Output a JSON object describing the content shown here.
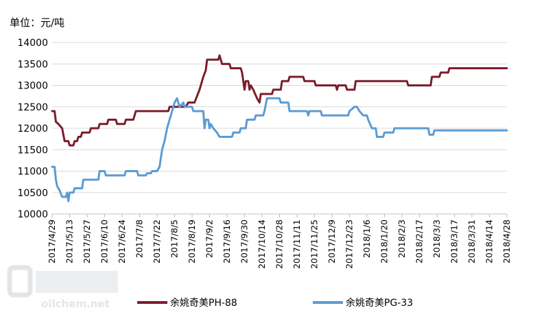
{
  "chart_data": {
    "type": "line",
    "unit_label": "单位：元/吨",
    "ylim": [
      10000,
      14000
    ],
    "yticks": [
      10000,
      10500,
      11000,
      11500,
      12000,
      12500,
      13000,
      13500,
      14000
    ],
    "xlim": [
      "2017-04-29",
      "2018-04-28"
    ],
    "xticks": [
      "2017/4/29",
      "2017/5/13",
      "2017/5/27",
      "2017/6/10",
      "2017/6/24",
      "2017/7/8",
      "2017/7/22",
      "2017/8/5",
      "2017/8/19",
      "2017/9/2",
      "2017/9/16",
      "2017/9/30",
      "2017/10/14",
      "2017/10/28",
      "2017/11/11",
      "2017/11/25",
      "2017/12/9",
      "2017/12/23",
      "2018/1/6",
      "2018/1/20",
      "2018/2/3",
      "2018/2/17",
      "2018/3/3",
      "2018/3/17",
      "2018/3/31",
      "2018/4/14",
      "2018/4/28"
    ],
    "grid": "horizontal",
    "legend_position": "bottom",
    "watermark": {
      "text": "oilchem.net",
      "colors": [
        "#dde0e4",
        "#e8eaed"
      ]
    },
    "series": [
      {
        "name": "余姚奇美PH-88",
        "color": "#7b1c2c",
        "points": [
          [
            "2017-04-29",
            12400
          ],
          [
            "2017-05-01",
            12400
          ],
          [
            "2017-05-02",
            12150
          ],
          [
            "2017-05-04",
            12100
          ],
          [
            "2017-05-07",
            12000
          ],
          [
            "2017-05-09",
            11700
          ],
          [
            "2017-05-12",
            11700
          ],
          [
            "2017-05-13",
            11600
          ],
          [
            "2017-05-16",
            11600
          ],
          [
            "2017-05-17",
            11700
          ],
          [
            "2017-05-19",
            11700
          ],
          [
            "2017-05-20",
            11800
          ],
          [
            "2017-05-22",
            11800
          ],
          [
            "2017-05-23",
            11900
          ],
          [
            "2017-05-29",
            11900
          ],
          [
            "2017-05-30",
            12000
          ],
          [
            "2017-06-05",
            12000
          ],
          [
            "2017-06-06",
            12100
          ],
          [
            "2017-06-12",
            12100
          ],
          [
            "2017-06-13",
            12200
          ],
          [
            "2017-06-19",
            12200
          ],
          [
            "2017-06-20",
            12100
          ],
          [
            "2017-06-26",
            12100
          ],
          [
            "2017-06-27",
            12200
          ],
          [
            "2017-07-03",
            12200
          ],
          [
            "2017-07-04",
            12300
          ],
          [
            "2017-07-05",
            12400
          ],
          [
            "2017-07-31",
            12400
          ],
          [
            "2017-08-01",
            12500
          ],
          [
            "2017-08-14",
            12500
          ],
          [
            "2017-08-15",
            12550
          ],
          [
            "2017-08-16",
            12600
          ],
          [
            "2017-08-21",
            12600
          ],
          [
            "2017-08-25",
            12900
          ],
          [
            "2017-08-28",
            13200
          ],
          [
            "2017-08-30",
            13350
          ],
          [
            "2017-08-31",
            13600
          ],
          [
            "2017-09-09",
            13600
          ],
          [
            "2017-09-10",
            13700
          ],
          [
            "2017-09-11",
            13600
          ],
          [
            "2017-09-12",
            13500
          ],
          [
            "2017-09-18",
            13500
          ],
          [
            "2017-09-19",
            13400
          ],
          [
            "2017-09-27",
            13400
          ],
          [
            "2017-09-28",
            13300
          ],
          [
            "2017-09-30",
            12900
          ],
          [
            "2017-10-01",
            13100
          ],
          [
            "2017-10-03",
            13100
          ],
          [
            "2017-10-04",
            12900
          ],
          [
            "2017-10-05",
            13000
          ],
          [
            "2017-10-07",
            12900
          ],
          [
            "2017-10-10",
            12700
          ],
          [
            "2017-10-12",
            12600
          ],
          [
            "2017-10-13",
            12800
          ],
          [
            "2017-10-22",
            12800
          ],
          [
            "2017-10-23",
            12900
          ],
          [
            "2017-10-29",
            12900
          ],
          [
            "2017-10-30",
            13100
          ],
          [
            "2017-11-04",
            13100
          ],
          [
            "2017-11-05",
            13200
          ],
          [
            "2017-11-16",
            13200
          ],
          [
            "2017-11-17",
            13100
          ],
          [
            "2017-11-25",
            13100
          ],
          [
            "2017-11-26",
            13000
          ],
          [
            "2017-12-12",
            13000
          ],
          [
            "2017-12-13",
            12900
          ],
          [
            "2017-12-14",
            13000
          ],
          [
            "2017-12-20",
            13000
          ],
          [
            "2017-12-21",
            12900
          ],
          [
            "2017-12-27",
            12900
          ],
          [
            "2017-12-28",
            13100
          ],
          [
            "2018-02-07",
            13100
          ],
          [
            "2018-02-08",
            13000
          ],
          [
            "2018-02-26",
            13000
          ],
          [
            "2018-02-27",
            13200
          ],
          [
            "2018-03-05",
            13200
          ],
          [
            "2018-03-06",
            13300
          ],
          [
            "2018-03-12",
            13300
          ],
          [
            "2018-03-13",
            13400
          ],
          [
            "2018-04-28",
            13400
          ]
        ]
      },
      {
        "name": "余姚奇美PG-33",
        "color": "#5b9bd5",
        "points": [
          [
            "2017-04-29",
            11100
          ],
          [
            "2017-05-01",
            11100
          ],
          [
            "2017-05-02",
            10800
          ],
          [
            "2017-05-03",
            10650
          ],
          [
            "2017-05-05",
            10550
          ],
          [
            "2017-05-07",
            10400
          ],
          [
            "2017-05-10",
            10400
          ],
          [
            "2017-05-11",
            10500
          ],
          [
            "2017-05-12",
            10300
          ],
          [
            "2017-05-13",
            10500
          ],
          [
            "2017-05-16",
            10500
          ],
          [
            "2017-05-17",
            10600
          ],
          [
            "2017-05-23",
            10600
          ],
          [
            "2017-05-24",
            10800
          ],
          [
            "2017-06-05",
            10800
          ],
          [
            "2017-06-06",
            11000
          ],
          [
            "2017-06-10",
            11000
          ],
          [
            "2017-06-11",
            10900
          ],
          [
            "2017-06-26",
            10900
          ],
          [
            "2017-06-27",
            11000
          ],
          [
            "2017-07-06",
            11000
          ],
          [
            "2017-07-07",
            10900
          ],
          [
            "2017-07-13",
            10900
          ],
          [
            "2017-07-14",
            10950
          ],
          [
            "2017-07-17",
            10950
          ],
          [
            "2017-07-18",
            11000
          ],
          [
            "2017-07-22",
            11000
          ],
          [
            "2017-07-24",
            11100
          ],
          [
            "2017-07-26",
            11500
          ],
          [
            "2017-07-28",
            11700
          ],
          [
            "2017-07-30",
            12000
          ],
          [
            "2017-08-01",
            12200
          ],
          [
            "2017-08-03",
            12400
          ],
          [
            "2017-08-05",
            12600
          ],
          [
            "2017-08-07",
            12700
          ],
          [
            "2017-08-09",
            12500
          ],
          [
            "2017-08-12",
            12600
          ],
          [
            "2017-08-13",
            12500
          ],
          [
            "2017-08-19",
            12500
          ],
          [
            "2017-08-20",
            12400
          ],
          [
            "2017-08-28",
            12400
          ],
          [
            "2017-08-29",
            12000
          ],
          [
            "2017-08-30",
            12200
          ],
          [
            "2017-09-01",
            12200
          ],
          [
            "2017-09-02",
            12000
          ],
          [
            "2017-09-03",
            12100
          ],
          [
            "2017-09-05",
            12000
          ],
          [
            "2017-09-08",
            11900
          ],
          [
            "2017-09-10",
            11800
          ],
          [
            "2017-09-20",
            11800
          ],
          [
            "2017-09-21",
            11900
          ],
          [
            "2017-09-26",
            11900
          ],
          [
            "2017-09-27",
            12000
          ],
          [
            "2017-10-01",
            12000
          ],
          [
            "2017-10-02",
            12200
          ],
          [
            "2017-10-08",
            12200
          ],
          [
            "2017-10-09",
            12300
          ],
          [
            "2017-10-15",
            12300
          ],
          [
            "2017-10-16",
            12400
          ],
          [
            "2017-10-18",
            12700
          ],
          [
            "2017-10-28",
            12700
          ],
          [
            "2017-10-29",
            12600
          ],
          [
            "2017-11-04",
            12600
          ],
          [
            "2017-11-05",
            12400
          ],
          [
            "2017-11-19",
            12400
          ],
          [
            "2017-11-20",
            12300
          ],
          [
            "2017-11-21",
            12400
          ],
          [
            "2017-11-30",
            12400
          ],
          [
            "2017-12-01",
            12300
          ],
          [
            "2017-12-22",
            12300
          ],
          [
            "2017-12-23",
            12400
          ],
          [
            "2017-12-27",
            12500
          ],
          [
            "2017-12-29",
            12500
          ],
          [
            "2017-12-31",
            12400
          ],
          [
            "2018-01-03",
            12300
          ],
          [
            "2018-01-06",
            12300
          ],
          [
            "2018-01-07",
            12200
          ],
          [
            "2018-01-10",
            12000
          ],
          [
            "2018-01-13",
            12000
          ],
          [
            "2018-01-14",
            11800
          ],
          [
            "2018-01-19",
            11800
          ],
          [
            "2018-01-20",
            11900
          ],
          [
            "2018-01-27",
            11900
          ],
          [
            "2018-01-28",
            12000
          ],
          [
            "2018-02-24",
            12000
          ],
          [
            "2018-02-25",
            11850
          ],
          [
            "2018-02-28",
            11850
          ],
          [
            "2018-03-01",
            11950
          ],
          [
            "2018-04-28",
            11950
          ]
        ]
      }
    ]
  }
}
